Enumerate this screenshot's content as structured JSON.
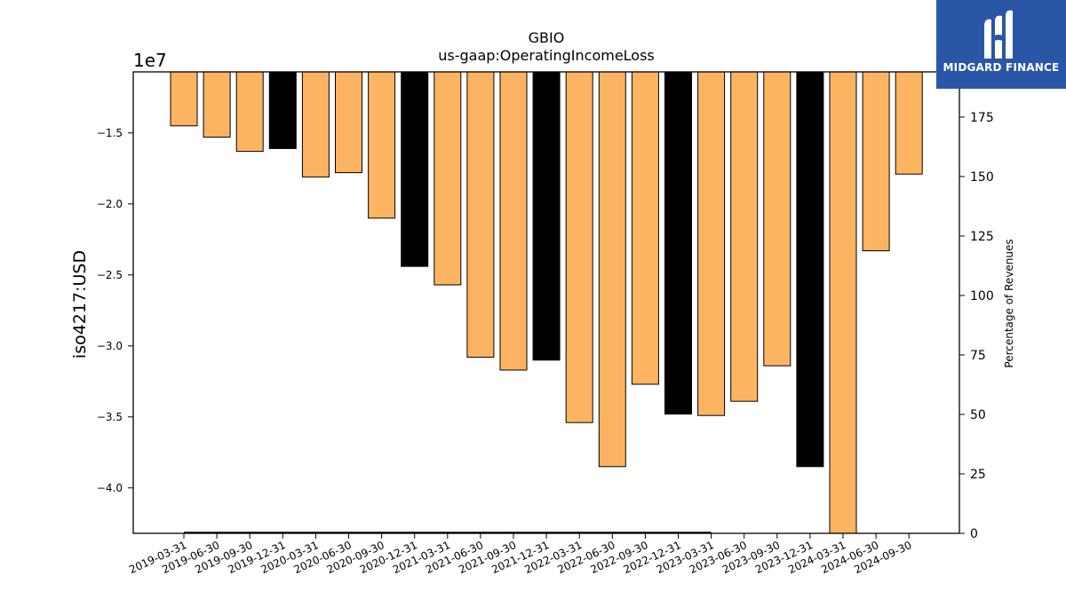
{
  "chart_data": {
    "type": "bar",
    "title": "GBIO",
    "subtitle": "us-gaap:OperatingIncomeLoss",
    "ylabel": "iso4217:USD",
    "y_offset_label": "1e7",
    "y2label": "Percentage of Revenues",
    "ylim": [
      -4.32,
      -1.07
    ],
    "y_ticks": [
      -1.5,
      -2.0,
      -2.5,
      -3.0,
      -3.5,
      -4.0
    ],
    "y_tick_labels": [
      "−1.5",
      "−2.0",
      "−2.5",
      "−3.0",
      "−3.5",
      "−4.0"
    ],
    "y2lim": [
      0,
      194
    ],
    "y2_ticks": [
      0,
      25,
      50,
      75,
      100,
      125,
      150,
      175
    ],
    "categories": [
      "2019-03-31",
      "2019-06-30",
      "2019-09-30",
      "2019-12-31",
      "2020-03-31",
      "2020-06-30",
      "2020-09-30",
      "2020-12-31",
      "2021-03-31",
      "2021-06-30",
      "2021-09-30",
      "2021-12-31",
      "2022-03-31",
      "2022-06-30",
      "2022-09-30",
      "2022-12-31",
      "2023-03-31",
      "2023-06-30",
      "2023-09-30",
      "2023-12-31",
      "2024-03-31",
      "2024-06-30",
      "2024-09-30"
    ],
    "values": [
      -1.45,
      -1.53,
      -1.63,
      -1.61,
      -1.81,
      -1.78,
      -2.1,
      -2.44,
      -2.57,
      -3.08,
      -3.17,
      -3.1,
      -3.54,
      -3.85,
      -3.27,
      -3.48,
      -3.49,
      -3.39,
      -3.14,
      -3.85,
      -4.32,
      -2.33,
      -1.79
    ],
    "quarter_type": [
      "q",
      "q",
      "q",
      "fy",
      "q",
      "q",
      "q",
      "fy",
      "q",
      "q",
      "q",
      "fy",
      "q",
      "q",
      "q",
      "fy",
      "q",
      "q",
      "q",
      "fy",
      "q",
      "q",
      "q"
    ],
    "pct_revenue_line": {
      "start_index": 0,
      "end_index": 16,
      "value": 0.3
    },
    "colors": {
      "quarter": "#fdb462",
      "fiscal_year": "#000000",
      "edge": "#000000",
      "line": "#000000"
    }
  },
  "logo": {
    "text": "MIDGARD FINANCE",
    "background": "#2a56a8",
    "icon": "midgard-logo-icon"
  }
}
